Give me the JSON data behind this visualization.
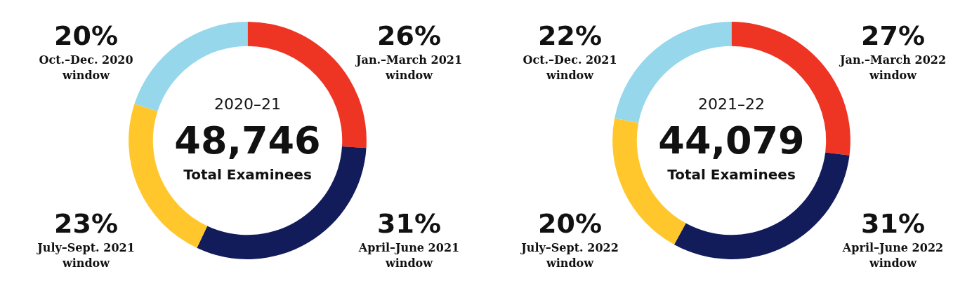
{
  "chart_data": [
    {
      "type": "donut",
      "title": "2020–21",
      "subtitle": "48,746",
      "annotations": [
        "Total Examinees"
      ],
      "categories": [
        "Jan.–March 2021 window",
        "April–June 2021 window",
        "July–Sept. 2021 window",
        "Oct.–Dec. 2020 window"
      ],
      "values": [
        26,
        31,
        23,
        20
      ],
      "value_labels": [
        "26%",
        "31%",
        "23%",
        "20%"
      ],
      "colors": [
        "#ee3524",
        "#131c5a",
        "#ffc72c",
        "#97d7ec"
      ],
      "legend": false
    },
    {
      "type": "donut",
      "title": "2021–22",
      "subtitle": "44,079",
      "annotations": [
        "Total Examinees"
      ],
      "categories": [
        "Jan.–March 2022 window",
        "April–June 2022 window",
        "July–Sept. 2022 window",
        "Oct.–Dec. 2021 window"
      ],
      "values": [
        27,
        31,
        20,
        22
      ],
      "value_labels": [
        "27%",
        "31%",
        "20%",
        "22%"
      ],
      "colors": [
        "#ee3524",
        "#131c5a",
        "#ffc72c",
        "#97d7ec"
      ],
      "legend": false
    }
  ]
}
